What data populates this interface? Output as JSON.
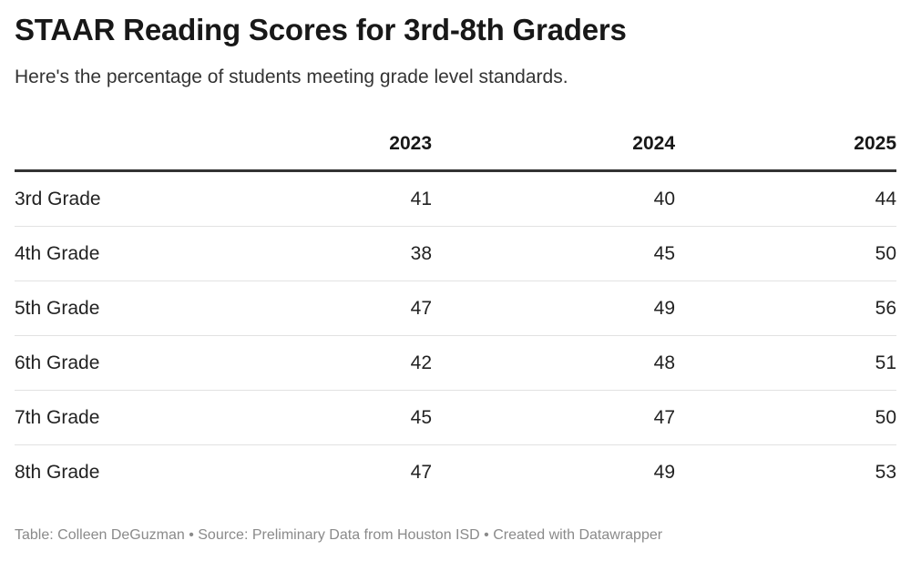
{
  "title": "STAAR Reading Scores for 3rd-8th Graders",
  "subtitle": "Here's the percentage of students meeting grade level standards.",
  "footer": "Table: Colleen DeGuzman • Source: Preliminary Data from Houston ISD • Created with Datawrapper",
  "chart_data": {
    "type": "table",
    "title": "STAAR Reading Scores for 3rd-8th Graders",
    "subtitle": "Here's the percentage of students meeting grade level standards.",
    "columns": [
      "",
      "2023",
      "2024",
      "2025"
    ],
    "rows": [
      {
        "label": "3rd Grade",
        "values": [
          "41",
          "40",
          "44"
        ]
      },
      {
        "label": "4th Grade",
        "values": [
          "38",
          "45",
          "50"
        ]
      },
      {
        "label": "5th Grade",
        "values": [
          "47",
          "49",
          "56"
        ]
      },
      {
        "label": "6th Grade",
        "values": [
          "42",
          "48",
          "51"
        ]
      },
      {
        "label": "7th Grade",
        "values": [
          "45",
          "47",
          "50"
        ]
      },
      {
        "label": "8th Grade",
        "values": [
          "47",
          "49",
          "53"
        ]
      }
    ]
  }
}
